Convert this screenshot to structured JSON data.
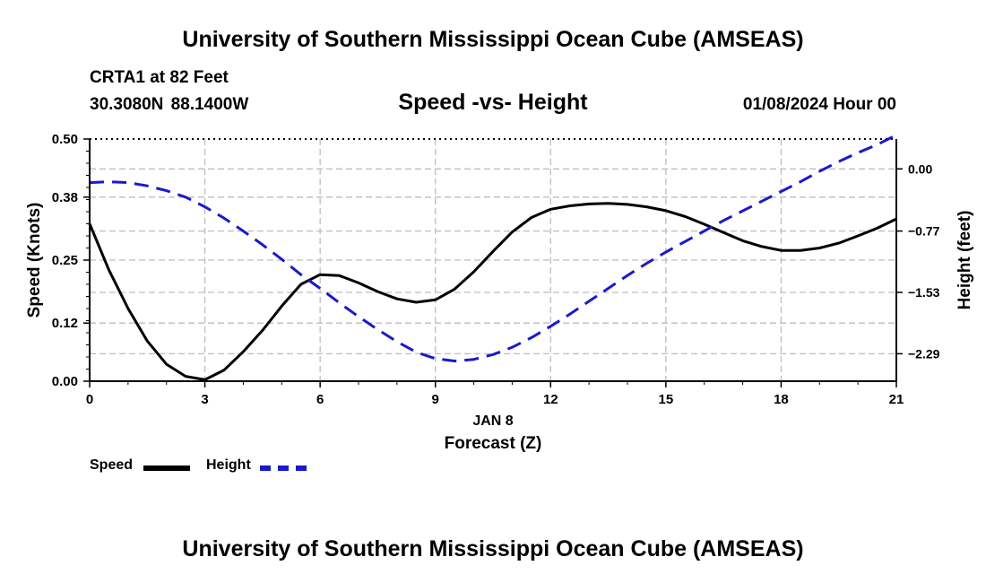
{
  "header": {
    "title": "University of Southern Mississippi Ocean Cube (AMSEAS)",
    "station": "CRTA1 at 82 Feet",
    "coords": "30.3080N  88.1400W",
    "subtitle": "Speed -vs- Height",
    "datetime": "01/08/2024 Hour 00"
  },
  "footer": {
    "title": "University of Southern Mississippi Ocean Cube (AMSEAS)"
  },
  "legend": {
    "speed_label": "Speed",
    "height_label": "Height",
    "speed_color": "#000000",
    "height_color": "#1a1acc"
  },
  "chart_data": {
    "type": "line",
    "title": "Speed -vs- Height",
    "xlabel_date": "JAN 8",
    "xlabel": "Forecast (Z)",
    "ylabel": "Speed (Knots)",
    "y2label": "Height (feet)",
    "xlim": [
      0,
      21
    ],
    "ylim": [
      0,
      0.5
    ],
    "y2lim": [
      -2.63,
      0.37
    ],
    "x_ticks": [
      "0",
      "3",
      "6",
      "9",
      "12",
      "15",
      "18",
      "21"
    ],
    "y_ticks": [
      "0.00",
      "0.12",
      "0.25",
      "0.38",
      "0.50"
    ],
    "y2_ticks": [
      "−2.29",
      "−1.53",
      "−0.77",
      "0.00"
    ],
    "grid": true,
    "series": [
      {
        "name": "Speed",
        "axis": "left",
        "style": "solid",
        "color": "#000000",
        "x": [
          0,
          0.5,
          1,
          1.5,
          2,
          2.5,
          3,
          3.5,
          4,
          4.5,
          5,
          5.5,
          6,
          6.5,
          7,
          7.5,
          8,
          8.5,
          9,
          9.5,
          10,
          10.5,
          11,
          11.5,
          12,
          12.5,
          13,
          13.5,
          14,
          14.5,
          15,
          15.5,
          16,
          16.5,
          17,
          17.5,
          18,
          18.5,
          19,
          19.5,
          20,
          20.5,
          21
        ],
        "values": [
          0.325,
          0.23,
          0.15,
          0.083,
          0.035,
          0.01,
          0.003,
          0.023,
          0.061,
          0.105,
          0.155,
          0.2,
          0.22,
          0.218,
          0.203,
          0.185,
          0.17,
          0.163,
          0.168,
          0.19,
          0.226,
          0.268,
          0.308,
          0.338,
          0.355,
          0.362,
          0.366,
          0.367,
          0.365,
          0.36,
          0.352,
          0.34,
          0.324,
          0.307,
          0.29,
          0.278,
          0.27,
          0.27,
          0.275,
          0.285,
          0.3,
          0.316,
          0.335
        ]
      },
      {
        "name": "Height",
        "axis": "right",
        "style": "dashed",
        "color": "#1a1acc",
        "x": [
          0,
          0.5,
          1,
          1.5,
          2,
          2.5,
          3,
          3.5,
          4,
          4.5,
          5,
          5.5,
          6,
          6.5,
          7,
          7.5,
          8,
          8.5,
          9,
          9.5,
          10,
          10.5,
          11,
          11.5,
          12,
          12.5,
          13,
          13.5,
          14,
          14.5,
          15,
          15.5,
          16,
          16.5,
          17,
          17.5,
          18,
          18.5,
          19,
          19.5,
          20,
          20.5,
          21
        ],
        "values": [
          -0.17,
          -0.16,
          -0.17,
          -0.21,
          -0.27,
          -0.35,
          -0.47,
          -0.61,
          -0.77,
          -0.94,
          -1.12,
          -1.31,
          -1.48,
          -1.66,
          -1.83,
          -1.99,
          -2.14,
          -2.27,
          -2.35,
          -2.38,
          -2.36,
          -2.3,
          -2.21,
          -2.09,
          -1.95,
          -1.8,
          -1.64,
          -1.48,
          -1.32,
          -1.17,
          -1.03,
          -0.9,
          -0.77,
          -0.64,
          -0.52,
          -0.4,
          -0.28,
          -0.16,
          -0.03,
          0.09,
          0.2,
          0.3,
          0.42
        ]
      }
    ]
  }
}
